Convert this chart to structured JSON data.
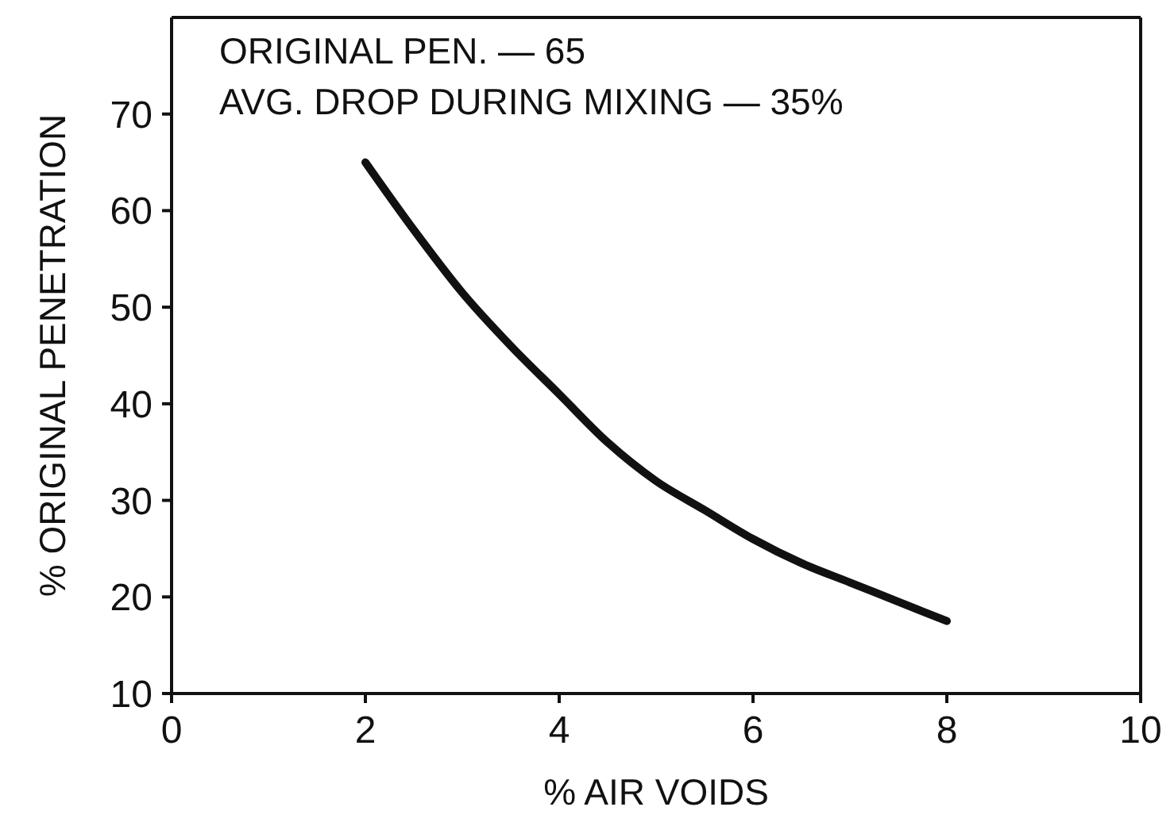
{
  "chart_data": {
    "type": "line",
    "xlabel": "% AIR VOIDS",
    "ylabel": "% ORIGINAL PENETRATION",
    "annotations": [
      "ORIGINAL PEN. — 65",
      "AVG. DROP DURING MIXING — 35%"
    ],
    "x": [
      2,
      2.5,
      3,
      3.5,
      4,
      4.5,
      5,
      5.5,
      6,
      6.5,
      7,
      7.5,
      8
    ],
    "series": [
      {
        "color": "#111111",
        "values": [
          65,
          58,
          51.5,
          46,
          41,
          36,
          32,
          29,
          26,
          23.5,
          21.5,
          19.5,
          17.5
        ]
      }
    ],
    "xlim": [
      0,
      10
    ],
    "xticks": [
      0,
      2,
      4,
      6,
      8,
      10
    ],
    "ylim": [
      10,
      80
    ],
    "yticks": [
      10,
      20,
      30,
      40,
      50,
      60,
      70
    ],
    "grid": false,
    "marker": "none",
    "line_style": "solid"
  }
}
